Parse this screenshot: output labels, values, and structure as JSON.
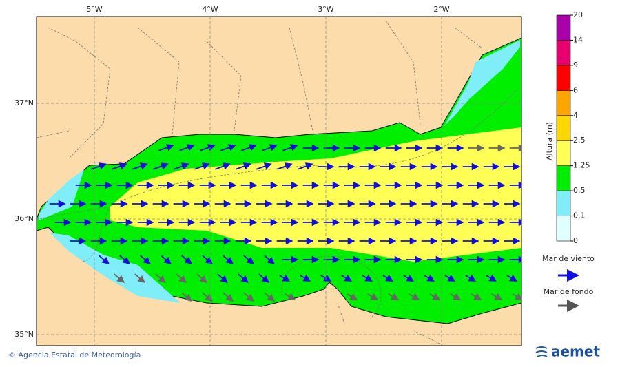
{
  "map": {
    "lon_labels": [
      "5°W",
      "4°W",
      "3°W",
      "2°W"
    ],
    "lat_labels": [
      "37°N",
      "36°N",
      "35°N"
    ]
  },
  "colorbar": {
    "title": "Altura (m)",
    "levels": [
      0,
      0.1,
      0.5,
      1.25,
      2.5,
      4,
      6,
      9,
      14,
      20
    ],
    "colors": [
      "#e0ffff",
      "#80eef8",
      "#00ee00",
      "#ffff55",
      "#ffd700",
      "#ffa500",
      "#ff0000",
      "#e8006e",
      "#aa00aa"
    ]
  },
  "legend": {
    "wind_sea": "Mar de viento",
    "swell": "Mar de fondo"
  },
  "footer": {
    "credit": "© Agencia Estatal de Meteorología",
    "logo": "aemet"
  }
}
